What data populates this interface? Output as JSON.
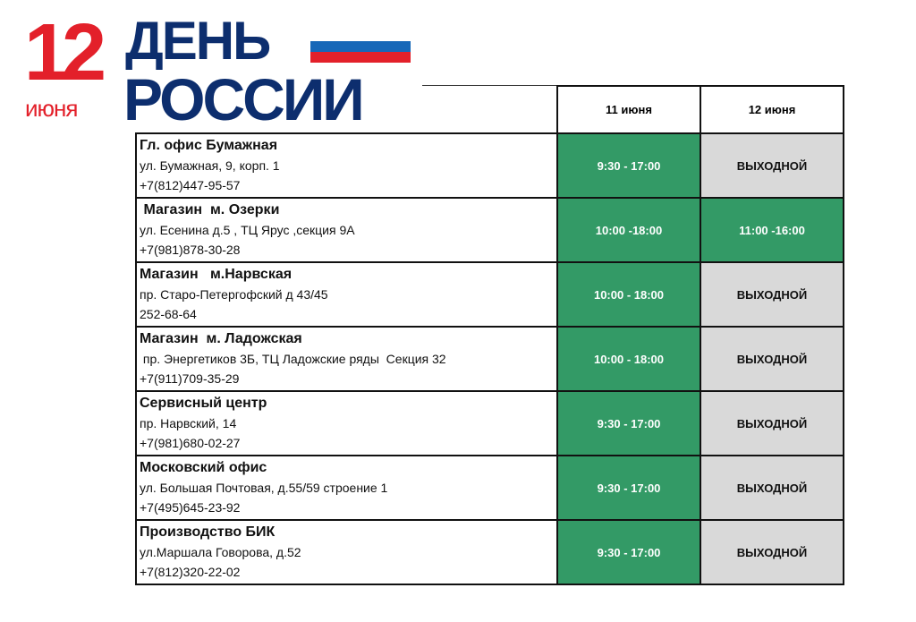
{
  "logo": {
    "day": "12",
    "month": "июня",
    "line1": "ДЕНЬ",
    "line2": "РОССИИ",
    "colors": {
      "red": "#e3202a",
      "blue": "#0d2e6e",
      "flag": [
        "#ffffff",
        "#1667b8",
        "#e3202a"
      ]
    }
  },
  "columns": [
    "11 июня",
    "12 июня"
  ],
  "rows": [
    {
      "name": "Гл. офис Бумажная",
      "address": "ул. Бумажная, 9, корп. 1",
      "phone": "+7(812)447-95-57",
      "d1": "9:30 - 17:00",
      "d2": "ВЫХОДНОЙ",
      "d2_open": false
    },
    {
      "name": " Магазин  м. Озерки",
      "address": "ул. Есенина д.5 , ТЦ Ярус ,секция 9А",
      "phone": "+7(981)878-30-28",
      "d1": "10:00 -18:00",
      "d2": "11:00 -16:00",
      "d2_open": true
    },
    {
      "name": "Магазин   м.Нарвская",
      "address": "пр. Старо-Петергофский д 43/45",
      "phone": "252-68-64",
      "d1": "10:00 - 18:00",
      "d2": "ВЫХОДНОЙ",
      "d2_open": false
    },
    {
      "name": "Магазин  м. Ладожская",
      "address": " пр. Энергетиков 3Б, ТЦ Ладожские ряды  Секция 32",
      "phone": "+7(911)709-35-29",
      "d1": "10:00 - 18:00",
      "d2": "ВЫХОДНОЙ",
      "d2_open": false
    },
    {
      "name": "Сервисный центр",
      "address": "пр. Нарвский, 14",
      "phone": "+7(981)680-02-27",
      "d1": "9:30 - 17:00",
      "d2": "ВЫХОДНОЙ",
      "d2_open": false
    },
    {
      "name": "Московский офис",
      "address": "ул. Большая Почтовая, д.55/59 строение 1",
      "phone": "+7(495)645-23-92",
      "d1": "9:30 - 17:00",
      "d2": "ВЫХОДНОЙ",
      "d2_open": false
    },
    {
      "name": "Производство БИК",
      "address": "ул.Маршала Говорова, д.52",
      "phone": "+7(812)320-22-02",
      "d1": "9:30 - 17:00",
      "d2": "ВЫХОДНОЙ",
      "d2_open": false
    }
  ]
}
